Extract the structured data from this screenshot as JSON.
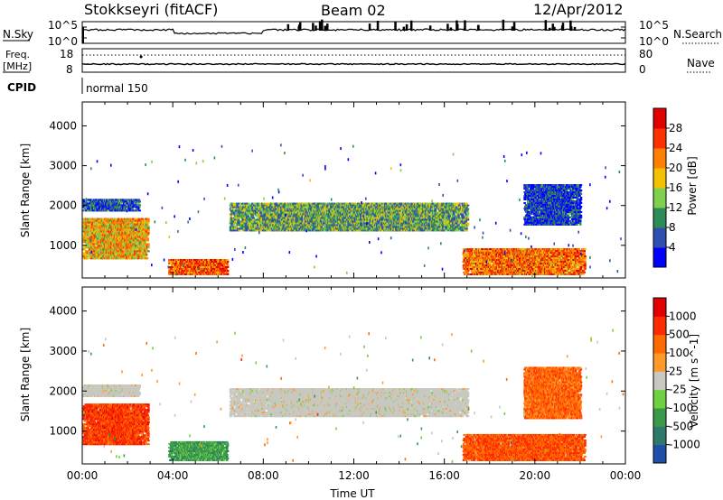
{
  "header": {
    "station": "Stokkseyri (fitACF)",
    "beam": "Beam 02",
    "date": "12/Apr/2012"
  },
  "nsky_panel": {
    "left_label": "N.Sky",
    "left_ticks": [
      "10^5",
      "10^0"
    ],
    "right_ticks": [
      "10^5",
      "10^0"
    ],
    "right_label": "N.Search"
  },
  "freq_panel": {
    "left_label_top": "Freq.",
    "left_label_bottom": "[MHz]",
    "left_ticks": [
      "18",
      "8"
    ],
    "right_ticks": [
      "80",
      "0"
    ],
    "right_label": "Nave"
  },
  "cpid_panel": {
    "label": "CPID",
    "mode": "normal 150"
  },
  "chart_data": [
    {
      "type": "heatmap",
      "title": "",
      "ylabel": "Slant Range [km]",
      "yticks": [
        1000,
        2000,
        3000,
        4000
      ],
      "ylim": [
        180,
        4600
      ],
      "xlim_hours": [
        0,
        24
      ],
      "colorbar_label": "Power [dB]",
      "colorbar_ticks": [
        "4",
        "8",
        "12",
        "16",
        "20",
        "24",
        "28"
      ],
      "colorbar_colors": [
        "#0000ff",
        "#2f4fb0",
        "#2e8b57",
        "#7fd04f",
        "#f2c200",
        "#ff8000",
        "#ff3000",
        "#e00000"
      ],
      "regions": [
        {
          "t": [
            0.0,
            2.9
          ],
          "r": [
            650,
            1650
          ],
          "level": 0.6
        },
        {
          "t": [
            0.0,
            2.5
          ],
          "r": [
            1850,
            2150
          ],
          "level": 0.15
        },
        {
          "t": [
            3.8,
            6.4
          ],
          "r": [
            250,
            650
          ],
          "level": 0.8
        },
        {
          "t": [
            6.5,
            17.0
          ],
          "r": [
            1350,
            2050
          ],
          "level": 0.35
        },
        {
          "t": [
            16.8,
            22.2
          ],
          "r": [
            250,
            900
          ],
          "level": 0.75
        },
        {
          "t": [
            19.5,
            22.0
          ],
          "r": [
            1500,
            2500
          ],
          "level": 0.1
        }
      ]
    },
    {
      "type": "heatmap",
      "title": "",
      "ylabel": "Slant Range [km]",
      "yticks": [
        1000,
        2000,
        3000,
        4000
      ],
      "ylim": [
        180,
        4600
      ],
      "xlim_hours": [
        0,
        24
      ],
      "xticks": [
        "00:00",
        "04:00",
        "08:00",
        "12:00",
        "16:00",
        "20:00",
        "00:00"
      ],
      "xlabel": "Time UT",
      "colorbar_label": "Velocity [m s^-1]",
      "colorbar_ticks": [
        "1000",
        "500",
        "100",
        "25",
        "-25",
        "-100",
        "-500",
        "-1000"
      ],
      "colorbar_colors": [
        "#1f4fa8",
        "#2e7a6a",
        "#3a9a4a",
        "#6fd040",
        "#c8c8c0",
        "#ff9a2a",
        "#ff6a00",
        "#ff2a00",
        "#e00000"
      ],
      "regions": [
        {
          "t": [
            0.0,
            2.9
          ],
          "r": [
            650,
            1650
          ],
          "level": -0.7
        },
        {
          "t": [
            0.0,
            2.5
          ],
          "r": [
            1850,
            2150
          ],
          "level": 0.0
        },
        {
          "t": [
            3.8,
            6.4
          ],
          "r": [
            250,
            700
          ],
          "level": 0.5
        },
        {
          "t": [
            6.5,
            17.0
          ],
          "r": [
            1350,
            2050
          ],
          "level": 0.0
        },
        {
          "t": [
            16.8,
            22.2
          ],
          "r": [
            250,
            900
          ],
          "level": -0.6
        },
        {
          "t": [
            19.5,
            22.0
          ],
          "r": [
            1300,
            2600
          ],
          "level": -0.5
        }
      ]
    }
  ]
}
